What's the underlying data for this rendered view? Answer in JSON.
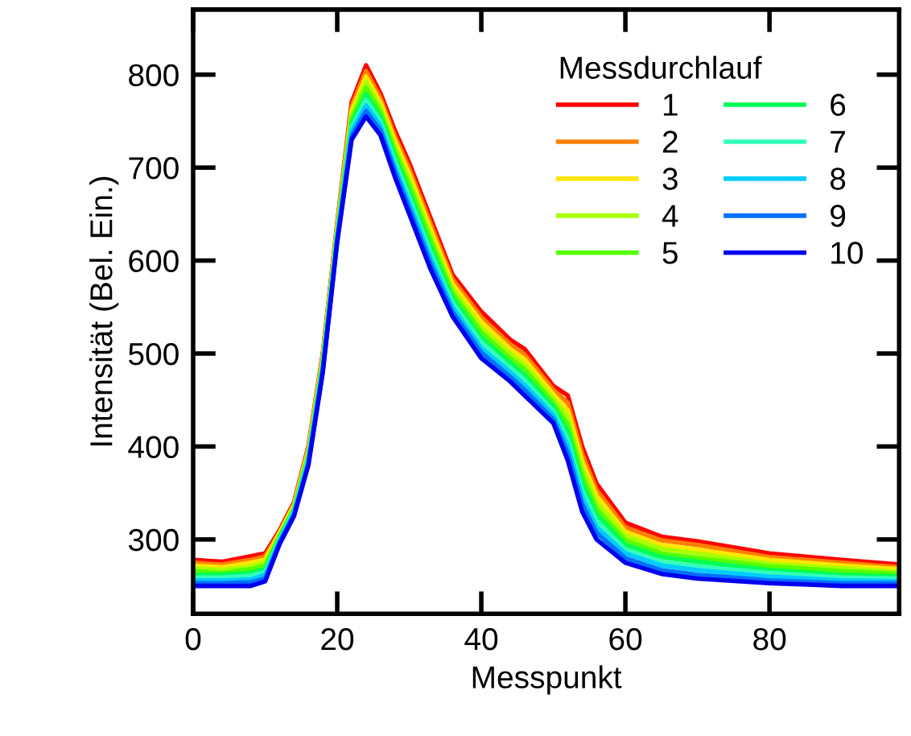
{
  "chart_data": {
    "type": "line",
    "xlabel": "Messpunkt",
    "ylabel": "Intensität (Bel. Ein.)",
    "legend_title": "Messdurchlauf",
    "legend": "top right",
    "grid": false,
    "marker": "none",
    "line_style": "solid",
    "x": [
      0,
      4,
      8,
      10,
      12,
      14,
      16,
      18,
      20,
      22,
      24,
      26,
      28,
      30,
      33,
      36,
      40,
      44,
      46,
      50,
      52,
      54,
      56,
      60,
      65,
      70,
      80,
      90,
      98
    ],
    "xlim": [
      0,
      98
    ],
    "xticks": [
      0,
      20,
      40,
      60,
      80
    ],
    "ylim": [
      220,
      870
    ],
    "yticks": [
      300,
      400,
      500,
      600,
      700,
      800
    ],
    "series": [
      {
        "name": "1",
        "color": "#ff0000",
        "values": [
          278,
          276,
          282,
          285,
          310,
          340,
          400,
          500,
          640,
          770,
          810,
          780,
          740,
          705,
          645,
          585,
          545,
          515,
          505,
          465,
          455,
          400,
          360,
          318,
          303,
          298,
          285,
          278,
          273
        ]
      },
      {
        "name": "2",
        "color": "#ff7f00",
        "values": [
          275,
          273,
          278,
          282,
          308,
          338,
          398,
          498,
          638,
          766,
          804,
          775,
          734,
          699,
          639,
          580,
          539,
          510,
          499,
          461,
          447,
          392,
          353,
          313,
          299,
          294,
          281,
          275,
          270
        ]
      },
      {
        "name": "3",
        "color": "#ffe600",
        "values": [
          272,
          270,
          275,
          278,
          307,
          337,
          396,
          496,
          636,
          761,
          798,
          770,
          729,
          693,
          633,
          575,
          534,
          505,
          494,
          456,
          439,
          384,
          347,
          308,
          294,
          289,
          278,
          272,
          268
        ]
      },
      {
        "name": "4",
        "color": "#aaff00",
        "values": [
          269,
          267,
          271,
          275,
          305,
          335,
          393,
          493,
          633,
          757,
          792,
          765,
          723,
          687,
          627,
          570,
          528,
          500,
          488,
          452,
          432,
          377,
          340,
          304,
          290,
          285,
          274,
          269,
          265
        ]
      },
      {
        "name": "5",
        "color": "#55ff00",
        "values": [
          266,
          264,
          268,
          272,
          303,
          333,
          391,
          491,
          631,
          752,
          786,
          760,
          718,
          681,
          621,
          565,
          523,
          495,
          483,
          447,
          424,
          369,
          333,
          299,
          285,
          280,
          271,
          266,
          263
        ]
      },
      {
        "name": "6",
        "color": "#00ff55",
        "values": [
          262,
          262,
          264,
          268,
          302,
          332,
          389,
          489,
          629,
          748,
          779,
          755,
          712,
          674,
          614,
          560,
          517,
          490,
          477,
          443,
          416,
          361,
          327,
          294,
          281,
          276,
          267,
          262,
          260
        ]
      },
      {
        "name": "7",
        "color": "#33ffbb",
        "values": [
          259,
          259,
          261,
          265,
          300,
          330,
          387,
          487,
          627,
          743,
          773,
          750,
          707,
          668,
          608,
          555,
          512,
          485,
          472,
          438,
          408,
          353,
          320,
          289,
          276,
          271,
          264,
          259,
          258
        ]
      },
      {
        "name": "8",
        "color": "#00ccff",
        "values": [
          256,
          256,
          257,
          262,
          298,
          328,
          384,
          484,
          624,
          739,
          767,
          745,
          701,
          662,
          602,
          550,
          506,
          480,
          466,
          434,
          401,
          346,
          313,
          285,
          272,
          267,
          260,
          256,
          255
        ]
      },
      {
        "name": "9",
        "color": "#0070ff",
        "values": [
          253,
          253,
          254,
          258,
          297,
          327,
          382,
          482,
          622,
          734,
          761,
          740,
          696,
          656,
          596,
          545,
          501,
          475,
          461,
          429,
          393,
          338,
          307,
          280,
          267,
          262,
          256,
          253,
          253
        ]
      },
      {
        "name": "10",
        "color": "#0000ee",
        "values": [
          250,
          250,
          250,
          255,
          295,
          325,
          380,
          480,
          620,
          730,
          755,
          735,
          690,
          650,
          590,
          540,
          495,
          470,
          455,
          425,
          385,
          330,
          300,
          275,
          263,
          258,
          253,
          250,
          250
        ]
      }
    ]
  }
}
